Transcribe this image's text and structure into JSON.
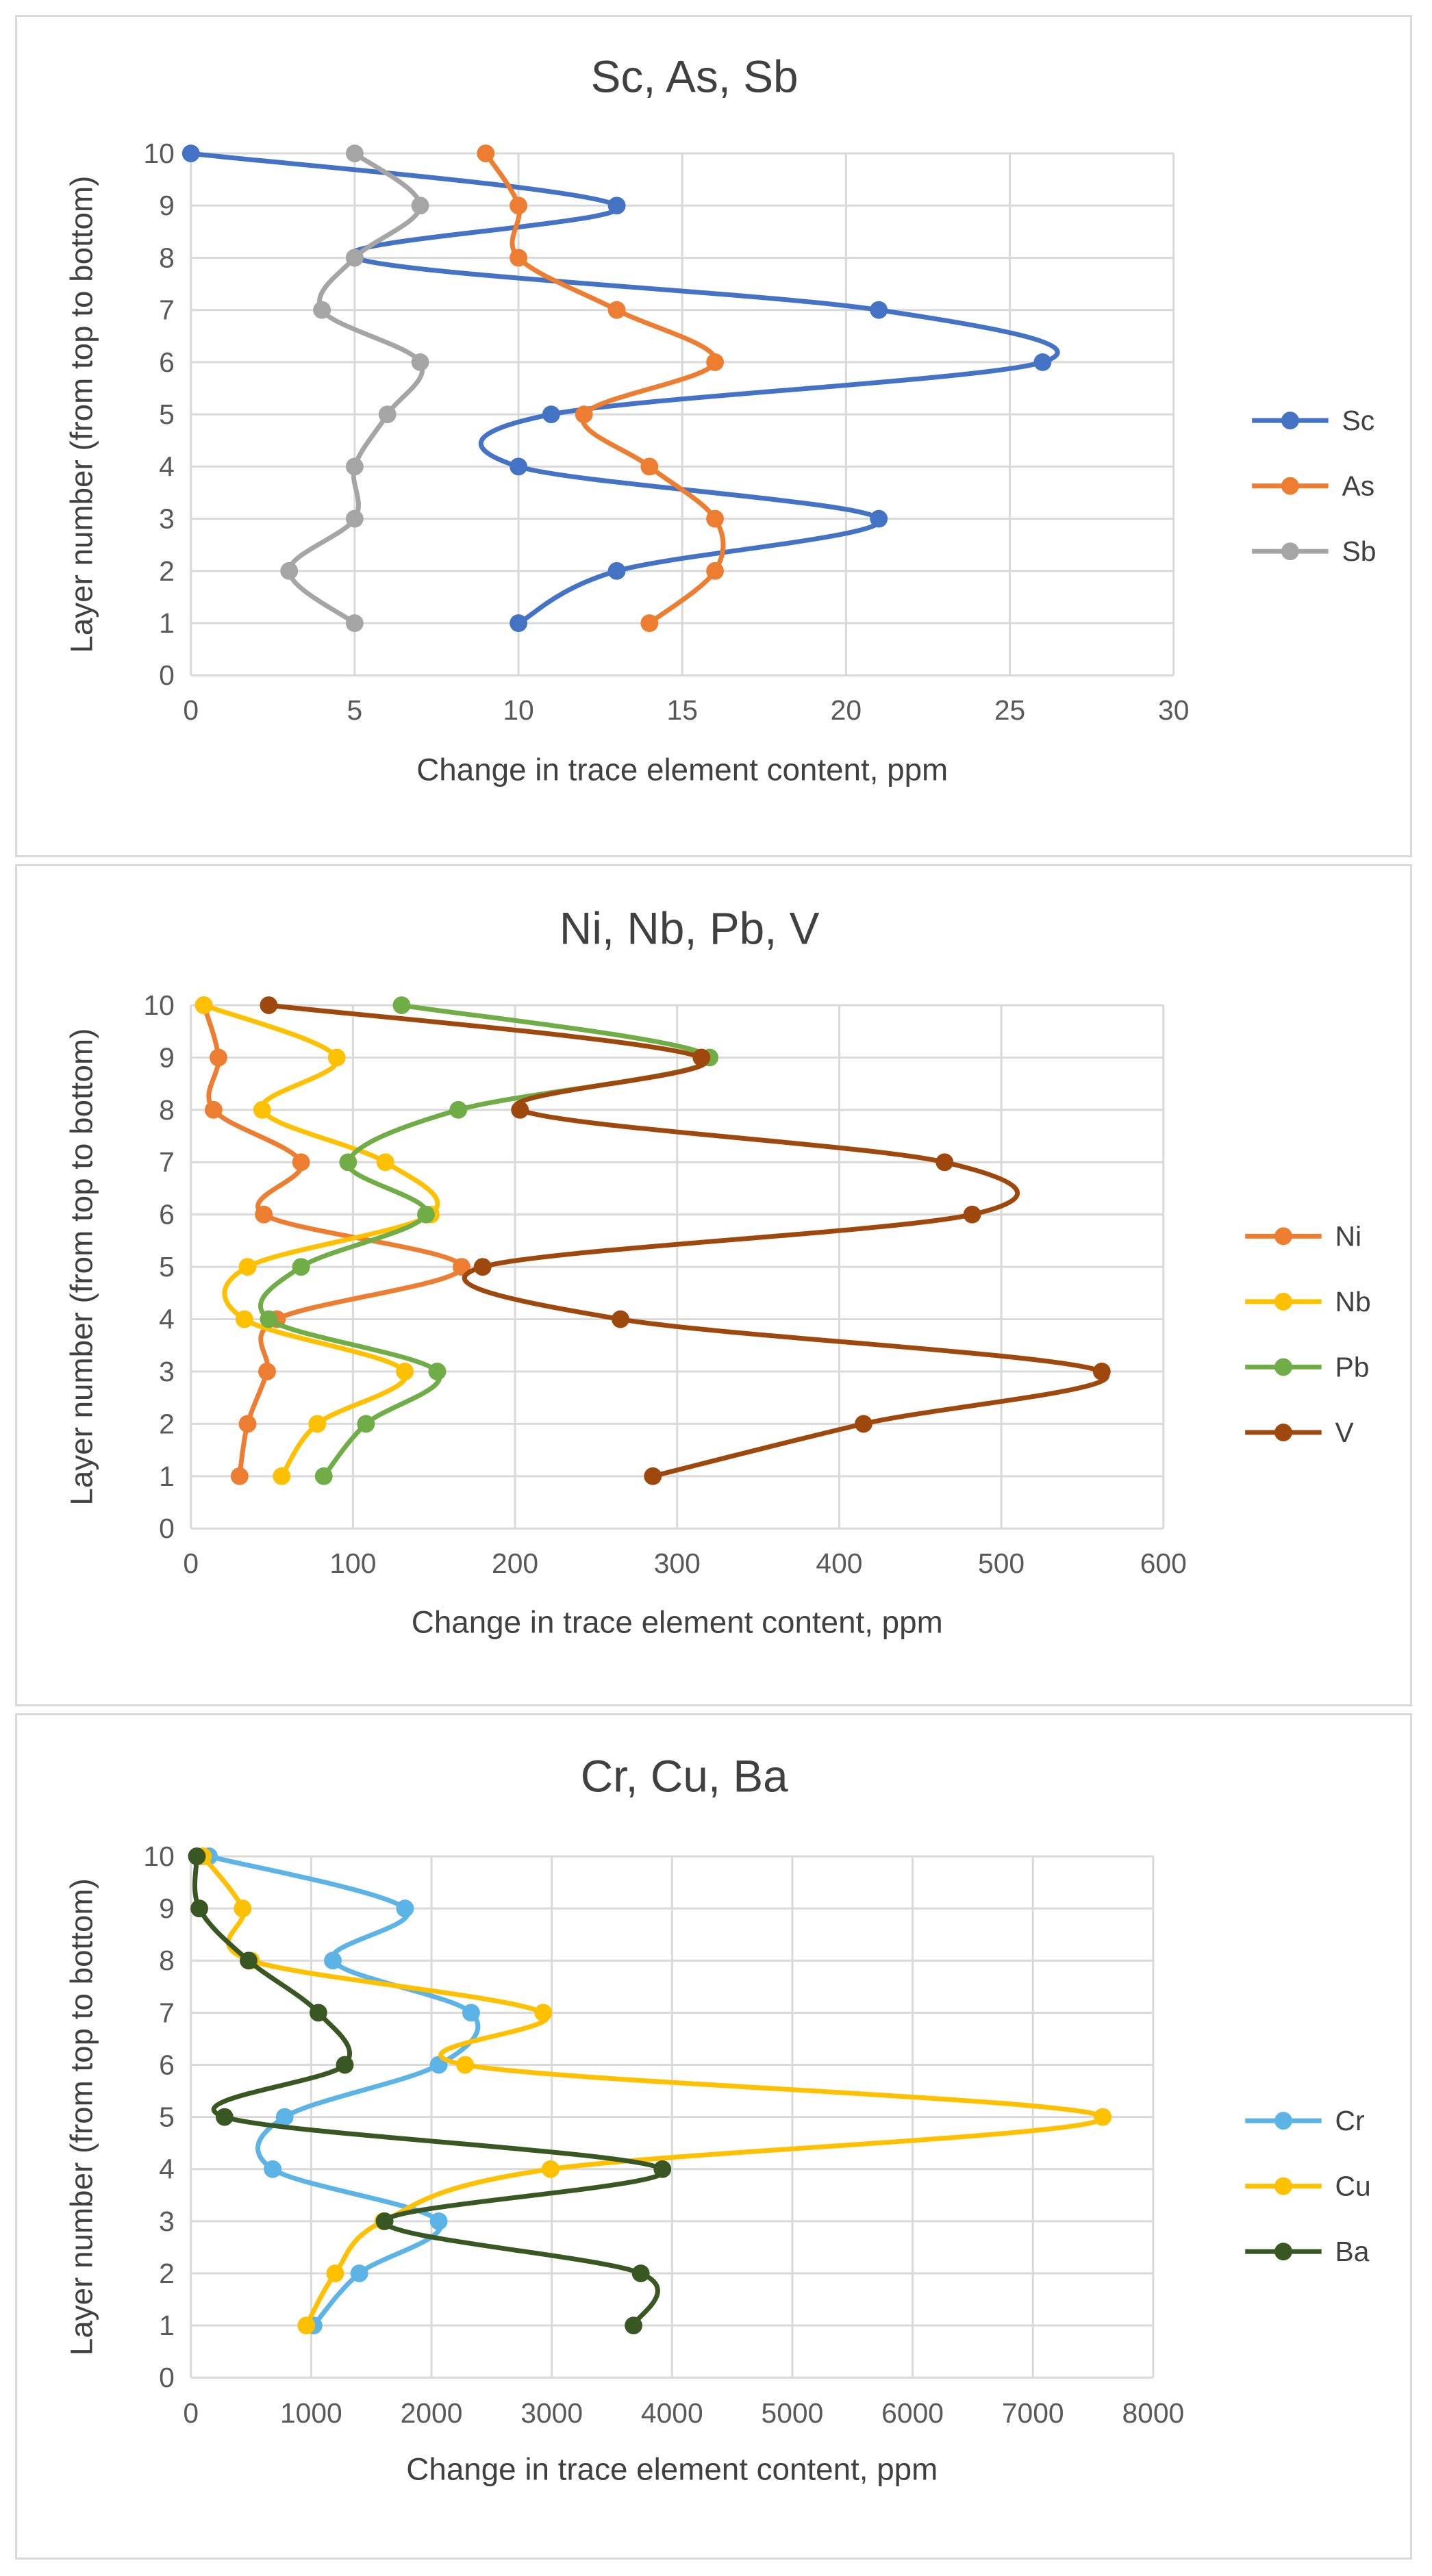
{
  "chart_data": [
    {
      "type": "line",
      "title": "Sc, As, Sb",
      "xlabel": "Change in trace element content, ppm",
      "ylabel": "Layer number (from top to bottom)",
      "xlim": [
        0,
        30
      ],
      "xticks": [
        0,
        5,
        10,
        15,
        20,
        25,
        30
      ],
      "ylim": [
        0,
        10
      ],
      "yticks": [
        0,
        1,
        2,
        3,
        4,
        5,
        6,
        7,
        8,
        9,
        10
      ],
      "grid": true,
      "legend_position": "right",
      "series": [
        {
          "name": "Sc",
          "color": "#4472C4",
          "y": [
            10,
            9,
            8,
            7,
            6,
            5,
            4,
            3,
            2,
            1
          ],
          "x": [
            0,
            13,
            5,
            21,
            26,
            11,
            10,
            21,
            13,
            10
          ]
        },
        {
          "name": "As",
          "color": "#ED7D31",
          "y": [
            10,
            9,
            8,
            7,
            6,
            5,
            4,
            3,
            2,
            1
          ],
          "x": [
            9,
            10,
            10,
            13,
            16,
            12,
            14,
            16,
            16,
            14
          ]
        },
        {
          "name": "Sb",
          "color": "#A5A5A5",
          "y": [
            10,
            9,
            8,
            7,
            6,
            5,
            4,
            3,
            2,
            1
          ],
          "x": [
            5,
            7,
            5,
            4,
            7,
            6,
            5,
            5,
            3,
            5
          ]
        }
      ]
    },
    {
      "type": "line",
      "title": "Ni, Nb, Pb, V",
      "xlabel": "Change in trace element content, ppm",
      "ylabel": "Layer number (from top to bottom)",
      "xlim": [
        0,
        600
      ],
      "xticks": [
        0,
        100,
        200,
        300,
        400,
        500,
        600
      ],
      "ylim": [
        0,
        10
      ],
      "yticks": [
        0,
        1,
        2,
        3,
        4,
        5,
        6,
        7,
        8,
        9,
        10
      ],
      "grid": true,
      "legend_position": "right",
      "series": [
        {
          "name": "Ni",
          "color": "#ED7D31",
          "y": [
            10,
            9,
            8,
            7,
            6,
            5,
            4,
            3,
            2,
            1
          ],
          "x": [
            8,
            17,
            14,
            68,
            45,
            167,
            53,
            47,
            35,
            30
          ]
        },
        {
          "name": "Nb",
          "color": "#FFC000",
          "y": [
            10,
            9,
            8,
            7,
            6,
            5,
            4,
            3,
            2,
            1
          ],
          "x": [
            8,
            90,
            44,
            120,
            148,
            35,
            33,
            132,
            78,
            56
          ]
        },
        {
          "name": "Pb",
          "color": "#70AD47",
          "y": [
            10,
            9,
            8,
            7,
            6,
            5,
            4,
            3,
            2,
            1
          ],
          "x": [
            130,
            320,
            165,
            97,
            145,
            68,
            48,
            152,
            108,
            82
          ]
        },
        {
          "name": "V",
          "color": "#9E480E",
          "y": [
            10,
            9,
            8,
            7,
            6,
            5,
            4,
            3,
            2,
            1
          ],
          "x": [
            48,
            315,
            203,
            465,
            482,
            180,
            265,
            562,
            415,
            285
          ]
        }
      ]
    },
    {
      "type": "line",
      "title": "Cr, Cu, Ba",
      "xlabel": "Change in trace element content, ppm",
      "ylabel": "Layer number (from top to bottom)",
      "xlim": [
        0,
        8000
      ],
      "xticks": [
        0,
        1000,
        2000,
        3000,
        4000,
        5000,
        6000,
        7000,
        8000
      ],
      "ylim": [
        0,
        10
      ],
      "yticks": [
        0,
        1,
        2,
        3,
        4,
        5,
        6,
        7,
        8,
        9,
        10
      ],
      "grid": true,
      "legend_position": "right",
      "series": [
        {
          "name": "Cr",
          "color": "#5BB3E6",
          "y": [
            10,
            9,
            8,
            7,
            6,
            5,
            4,
            3,
            2,
            1
          ],
          "x": [
            150,
            1780,
            1180,
            2330,
            2060,
            780,
            680,
            2060,
            1400,
            1020
          ]
        },
        {
          "name": "Cu",
          "color": "#FFC000",
          "y": [
            10,
            9,
            8,
            7,
            6,
            5,
            4,
            3,
            2,
            1
          ],
          "x": [
            100,
            430,
            500,
            2930,
            2280,
            7580,
            2990,
            1600,
            1200,
            960
          ]
        },
        {
          "name": "Ba",
          "color": "#385723",
          "y": [
            10,
            9,
            8,
            7,
            6,
            5,
            4,
            3,
            2,
            1
          ],
          "x": [
            50,
            70,
            480,
            1060,
            1280,
            280,
            3920,
            1610,
            3740,
            3680
          ]
        }
      ]
    }
  ]
}
